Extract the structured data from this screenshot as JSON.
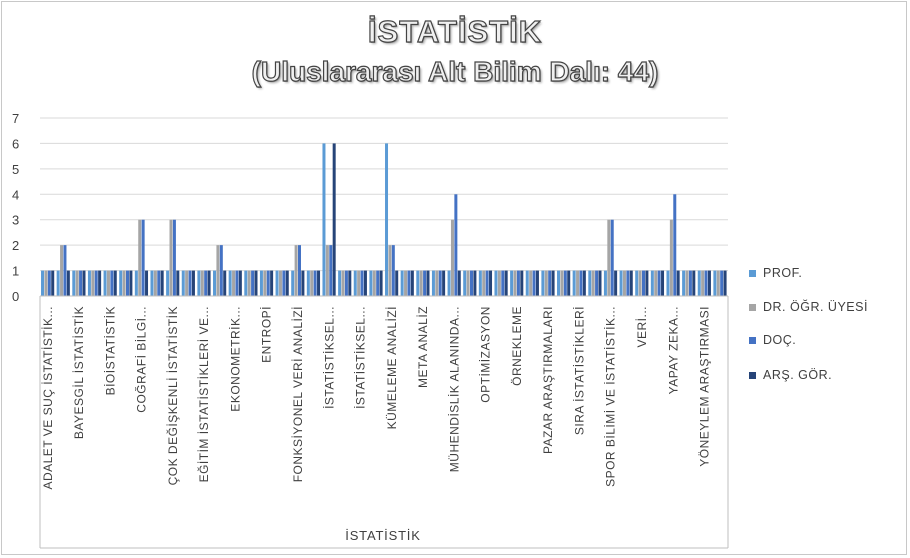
{
  "title": "İSTATİSTİK",
  "subtitle": "(Uluslararası Alt Bilim Dalı: 44)",
  "chart_data": {
    "type": "bar",
    "xlabel": "İSTATİSTİK",
    "ylim": [
      0,
      7
    ],
    "yticks": [
      0,
      1,
      2,
      3,
      4,
      5,
      6,
      7
    ],
    "grid": true,
    "legend_position": "right",
    "categories": [
      "ADALET VE SUÇ İSTATİSTİK...",
      "",
      "BAYESGİL İSTATİSTİK",
      "",
      "BİOİSTATİSTİK",
      "",
      "COĞRAFİ BİLGİ...",
      "",
      "ÇOK DEĞİŞKENLİ İSTATİSTİK",
      "",
      "EĞİTİM İSTATİSTİKLERİ VE...",
      "",
      "EKONOMETRİK...",
      "",
      "ENTROPİ",
      "",
      "FONKSİYONEL VERİ ANALİZİ",
      "",
      "İSTATİSTİKSEL...",
      "",
      "İSTATİSTİKSEL...",
      "",
      "KÜMELEME ANALİZİ",
      "",
      "META ANALİZ",
      "",
      "MÜHENDİSLİK ALANINDA...",
      "",
      "OPTİMİZASYON",
      "",
      "ÖRNEKLEME",
      "",
      "PAZAR ARAŞTIRMALARI",
      "",
      "SIRA İSTATİSTİKLERİ",
      "",
      "SPOR BİLİMİ VE İSTATİSTİK...",
      "",
      "VERİ...",
      "",
      "YAPAY ZEKA...",
      "",
      "YÖNEYLEM ARAŞTIRMASI",
      ""
    ],
    "series": [
      {
        "name": "PROF.",
        "color": "#5b9bd5",
        "values": [
          1,
          1,
          1,
          1,
          1,
          1,
          1,
          1,
          1,
          1,
          1,
          1,
          1,
          1,
          1,
          1,
          1,
          1,
          6,
          1,
          1,
          1,
          6,
          1,
          1,
          1,
          1,
          1,
          1,
          1,
          1,
          1,
          1,
          1,
          1,
          1,
          1,
          1,
          1,
          1,
          1,
          1,
          1,
          1
        ]
      },
      {
        "name": "DR. ÖĞR. ÜYESİ",
        "color": "#a5a5a5",
        "values": [
          1,
          2,
          1,
          1,
          1,
          1,
          3,
          1,
          3,
          1,
          1,
          2,
          1,
          1,
          1,
          1,
          2,
          1,
          2,
          1,
          1,
          1,
          2,
          1,
          1,
          1,
          3,
          1,
          1,
          1,
          1,
          1,
          1,
          1,
          1,
          1,
          3,
          1,
          1,
          1,
          3,
          1,
          1,
          1
        ]
      },
      {
        "name": "DOÇ.",
        "color": "#4472c4",
        "values": [
          1,
          2,
          1,
          1,
          1,
          1,
          3,
          1,
          3,
          1,
          1,
          2,
          1,
          1,
          1,
          1,
          2,
          1,
          2,
          1,
          1,
          1,
          2,
          1,
          1,
          1,
          4,
          1,
          1,
          1,
          1,
          1,
          1,
          1,
          1,
          1,
          3,
          1,
          1,
          1,
          4,
          1,
          1,
          1
        ]
      },
      {
        "name": "ARŞ. GÖR.",
        "color": "#264478",
        "values": [
          1,
          1,
          1,
          1,
          1,
          1,
          1,
          1,
          1,
          1,
          1,
          1,
          1,
          1,
          1,
          1,
          1,
          1,
          6,
          1,
          1,
          1,
          1,
          1,
          1,
          1,
          1,
          1,
          1,
          1,
          1,
          1,
          1,
          1,
          1,
          1,
          1,
          1,
          1,
          1,
          1,
          1,
          1,
          1
        ]
      }
    ]
  }
}
